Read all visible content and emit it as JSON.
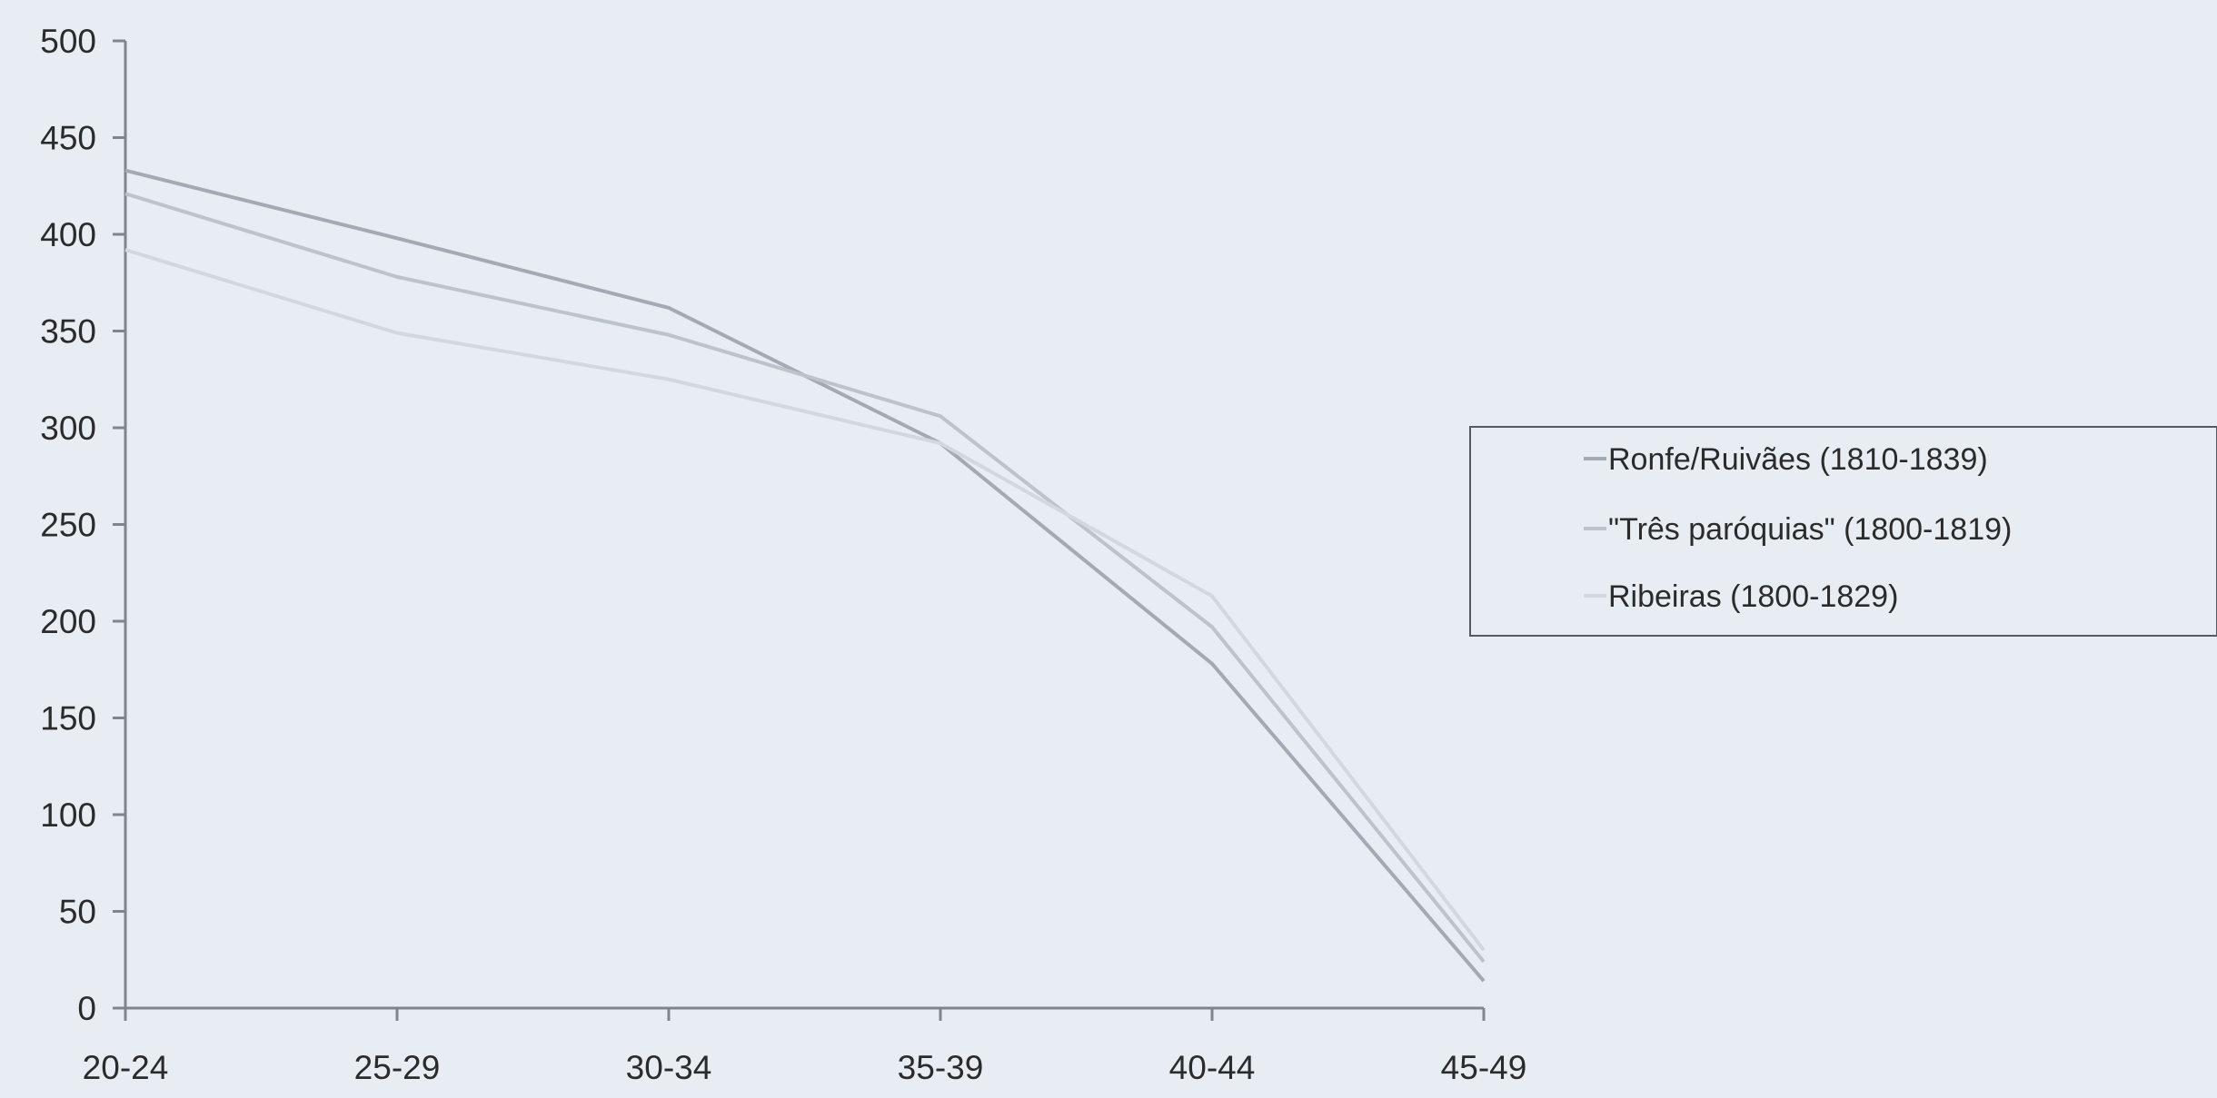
{
  "chart_data": {
    "type": "line",
    "title": "",
    "xlabel": "",
    "ylabel": "",
    "categories": [
      "20-24",
      "25-29",
      "30-34",
      "35-39",
      "40-44",
      "45-49"
    ],
    "y_ticks": [
      "0",
      "50",
      "100",
      "150",
      "200",
      "250",
      "300",
      "350",
      "400",
      "450",
      "500"
    ],
    "ylim": [
      0,
      500
    ],
    "grid": false,
    "legend_position": "right",
    "series": [
      {
        "name": "Ronfe/Ruivães (1810-1839)",
        "values": [
          433,
          398,
          362,
          292,
          178,
          14
        ],
        "color": "#a3aab4"
      },
      {
        "name": "\"Três paróquias\" (1800-1819)",
        "values": [
          421,
          378,
          348,
          306,
          197,
          24
        ],
        "color": "#bcc3cb"
      },
      {
        "name": "Ribeiras (1800-1829)",
        "values": [
          392,
          349,
          325,
          292,
          213,
          30
        ],
        "color": "#d2d8de"
      }
    ],
    "axis_color": "#7d858f",
    "text_color": "#2b2b2b"
  }
}
